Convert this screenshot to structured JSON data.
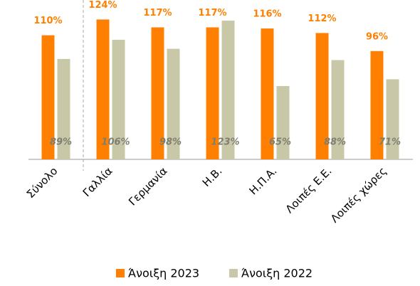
{
  "chart_data": {
    "type": "bar",
    "categories": [
      "Σύνολο",
      "Γαλλία",
      "Γερμανία",
      "Η.Β.",
      "Η.Π.Α.",
      "Λοιπές Ε.Ε.",
      "Λοιπές χώρες"
    ],
    "series": [
      {
        "name": "Άνοιξη 2023",
        "color": "#ff8000",
        "values": [
          110,
          124,
          117,
          117,
          116,
          112,
          96
        ],
        "value_labels": [
          "110%",
          "124%",
          "117%",
          "117%",
          "116%",
          "112%",
          "96%"
        ]
      },
      {
        "name": "Άνοιξη 2022",
        "color": "#c8c8a9",
        "values": [
          89,
          106,
          98,
          123,
          65,
          88,
          71
        ],
        "value_labels": [
          "89%",
          "106%",
          "98%",
          "123%",
          "65%",
          "88%",
          "71%"
        ]
      }
    ],
    "ylim": [
      0,
      140
    ],
    "legend": "bottom"
  }
}
